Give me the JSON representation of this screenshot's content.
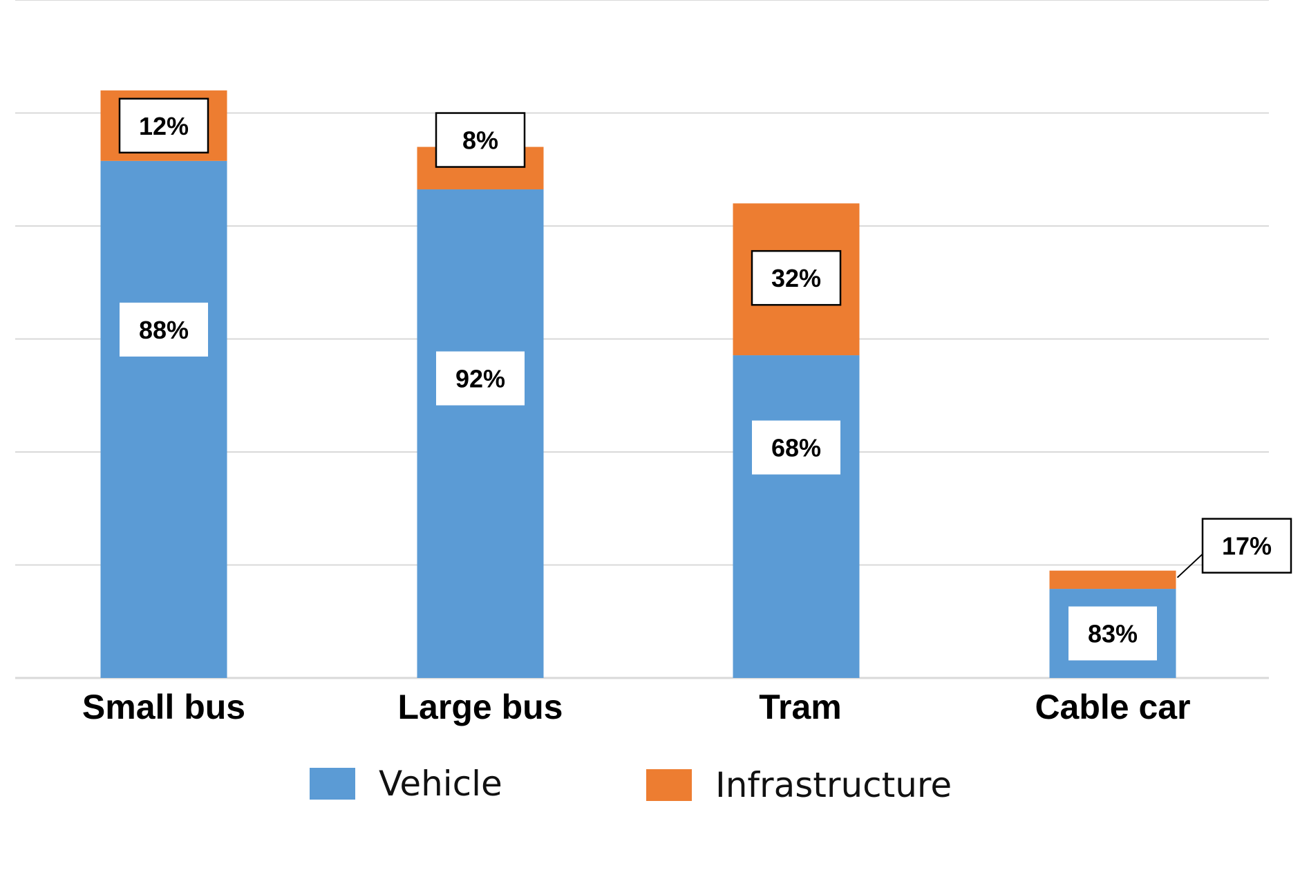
{
  "chart_data": {
    "type": "bar",
    "stacked": true,
    "categories": [
      "Small bus",
      "Large bus",
      "Tram",
      "Cable car"
    ],
    "series": [
      {
        "name": "Vehicle",
        "color": "#5B9BD5",
        "labels": [
          "88%",
          "92%",
          "68%",
          "83%"
        ]
      },
      {
        "name": "Infrastructure",
        "color": "#ED7D31",
        "labels": [
          "12%",
          "8%",
          "32%",
          "17%"
        ]
      }
    ],
    "totals": [
      5.2,
      4.7,
      4.2,
      0.95
    ],
    "ylim": [
      0,
      6
    ],
    "grid": true,
    "legend": "bottom"
  }
}
